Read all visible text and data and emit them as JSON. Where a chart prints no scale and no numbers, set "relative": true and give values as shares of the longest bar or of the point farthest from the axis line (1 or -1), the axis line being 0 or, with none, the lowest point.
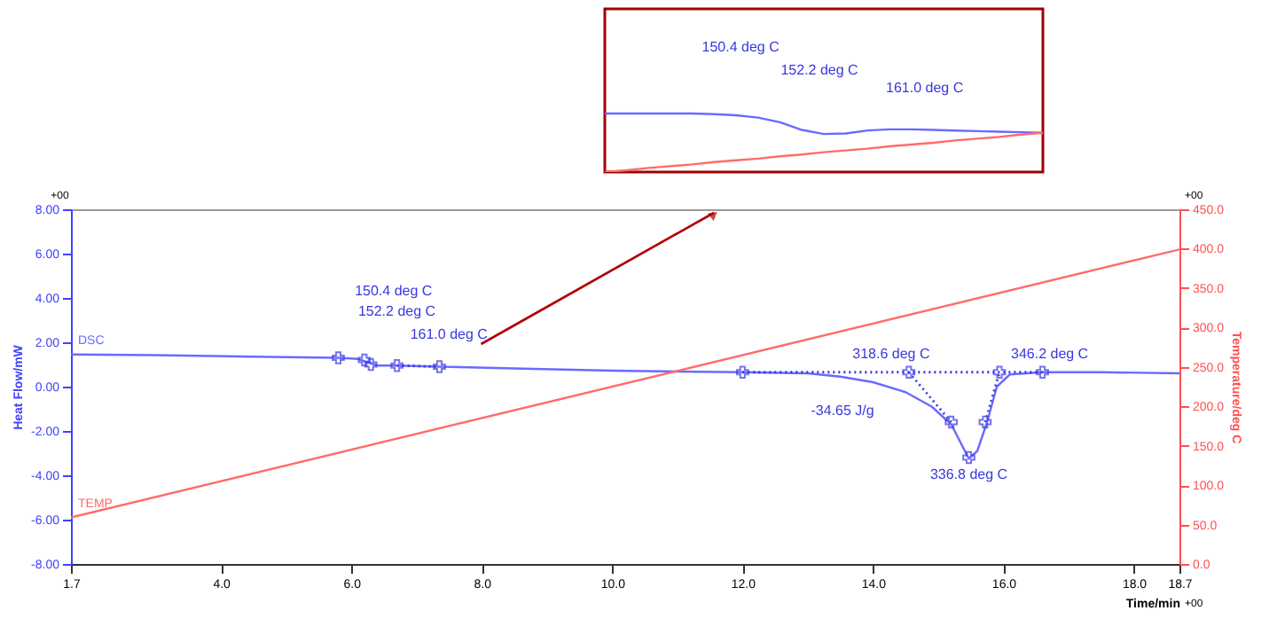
{
  "chart_data": [
    {
      "type": "line",
      "xlabel": "Time/min",
      "ylabel": "Heat Flow/mW",
      "y2label": "Temperature/deg C",
      "xlim": [
        1.7,
        18.7
      ],
      "xticks": [
        1.7,
        {
          "value": 4,
          "label": "4.0"
        },
        {
          "value": 6,
          "label": "6.0"
        },
        {
          "value": 8,
          "label": "8.0"
        },
        {
          "value": 10,
          "label": "10.0"
        },
        {
          "value": 12,
          "label": "12.0"
        },
        {
          "value": 14,
          "label": "14.0"
        },
        {
          "value": 16,
          "label": "16.0"
        },
        {
          "value": 18,
          "label": "18.0"
        },
        18.7
      ],
      "ylim": [
        -8,
        8
      ],
      "yticks": [
        {
          "value": -8,
          "label": "-8.00"
        },
        {
          "value": -6,
          "label": "-6.00"
        },
        {
          "value": -4,
          "label": "-4.00"
        },
        {
          "value": -2,
          "label": "-2.00"
        },
        {
          "value": 0,
          "label": "0.00"
        },
        {
          "value": 2,
          "label": "2.00"
        },
        {
          "value": 4,
          "label": "4.00"
        },
        {
          "value": 6,
          "label": "6.00"
        },
        {
          "value": 8,
          "label": "8.00"
        }
      ],
      "y2lim": [
        0,
        450
      ],
      "y2ticks": [
        {
          "value": 0,
          "label": "0.0"
        },
        {
          "value": 50,
          "label": "50.0"
        },
        {
          "value": 100,
          "label": "100.0"
        },
        {
          "value": 150,
          "label": "150.0"
        },
        {
          "value": 200,
          "label": "200.0"
        },
        {
          "value": 250,
          "label": "250.0"
        },
        {
          "value": 300,
          "label": "300.0"
        },
        {
          "value": 350,
          "label": "350.0"
        },
        {
          "value": 400,
          "label": "400.0"
        },
        {
          "value": 450,
          "label": "450.0"
        }
      ],
      "grid": false,
      "series": [
        {
          "name": "DSC",
          "color": "#6a6aff",
          "x": [
            1.7,
            3.0,
            4.5,
            5.8,
            6.1,
            6.25,
            6.4,
            6.7,
            7.35,
            8.5,
            10.0,
            11.0,
            12.0,
            13.0,
            13.5,
            14.0,
            14.5,
            14.9,
            15.2,
            15.47,
            15.6,
            15.75,
            15.9,
            16.1,
            16.6,
            17.5,
            18.7
          ],
          "values": [
            1.45,
            1.42,
            1.35,
            1.3,
            1.25,
            1.1,
            0.95,
            0.95,
            0.9,
            0.82,
            0.72,
            0.68,
            0.65,
            0.6,
            0.45,
            0.2,
            -0.25,
            -0.9,
            -1.7,
            -3.25,
            -2.9,
            -1.6,
            0.0,
            0.55,
            0.65,
            0.65,
            0.6
          ]
        },
        {
          "name": "TEMP",
          "color": "#ff6b6b",
          "axis": "y2",
          "x": [
            1.7,
            18.7
          ],
          "values": [
            59,
            399
          ]
        },
        {
          "type": "line",
          "line_style": "dotted",
          "color": "#3838e0",
          "x": [
            6.7,
            7.35
          ],
          "values": [
            0.95,
            0.9
          ]
        },
        {
          "type": "line",
          "line_style": "dotted",
          "color": "#3838e0",
          "x": [
            12.0,
            16.6
          ],
          "values": [
            0.65,
            0.65
          ]
        },
        {
          "type": "line",
          "line_style": "dotted",
          "color": "#3838e0",
          "x": [
            14.55,
            15.2
          ],
          "values": [
            0.65,
            -1.6
          ]
        },
        {
          "type": "line",
          "line_style": "dotted",
          "color": "#3838e0",
          "x": [
            15.72,
            15.94
          ],
          "values": [
            -1.6,
            0.65
          ]
        },
        {
          "type": "scatter",
          "marker": "cross",
          "color": "#3838e0",
          "x": [
            5.8,
            6.2,
            6.3,
            6.7,
            7.35,
            12.0,
            14.55,
            15.2,
            15.47,
            15.72,
            15.94,
            16.6
          ],
          "values": [
            1.3,
            1.2,
            1.0,
            0.95,
            0.9,
            0.65,
            0.65,
            -1.6,
            -3.2,
            -1.6,
            0.65,
            0.65
          ]
        }
      ],
      "annotations": [
        "150.4 deg C",
        "152.2 deg C",
        "161.0 deg C",
        {
          "text": "318.6 deg C",
          "x": 14.55,
          "y": 0.65
        },
        {
          "text": "346.2 deg C",
          "x": 16.6,
          "y": 0.65
        },
        "-34.65 J/g",
        {
          "text": "336.8 deg C",
          "x": 15.47,
          "y": -3.2
        },
        "+00",
        "+00",
        "+00"
      ]
    },
    {
      "type": "line",
      "relative": true,
      "categories": [
        null,
        null,
        null,
        null,
        null,
        null,
        null,
        null,
        null,
        null,
        null,
        null,
        null,
        null,
        null,
        null,
        null,
        null,
        null,
        null,
        null
      ],
      "series": [
        {
          "color": "#6a6aff",
          "values": [
            1,
            1,
            1,
            1,
            1,
            0.99,
            0.97,
            0.93,
            0.85,
            0.72,
            0.65,
            0.66,
            0.71,
            0.73,
            0.73,
            0.72,
            0.71,
            0.7,
            0.69,
            0.68,
            0.67
          ]
        },
        {
          "color": "#ff6b6b",
          "values": [
            0,
            0.03,
            0.07,
            0.1,
            0.13,
            0.17,
            0.2,
            0.23,
            0.27,
            0.3,
            0.34,
            0.37,
            0.4,
            0.44,
            0.47,
            0.5,
            0.54,
            0.57,
            0.6,
            0.64,
            0.67
          ]
        }
      ],
      "annotations": [
        "150.4 deg C",
        "152.2 deg C",
        "161.0 deg C"
      ]
    }
  ]
}
